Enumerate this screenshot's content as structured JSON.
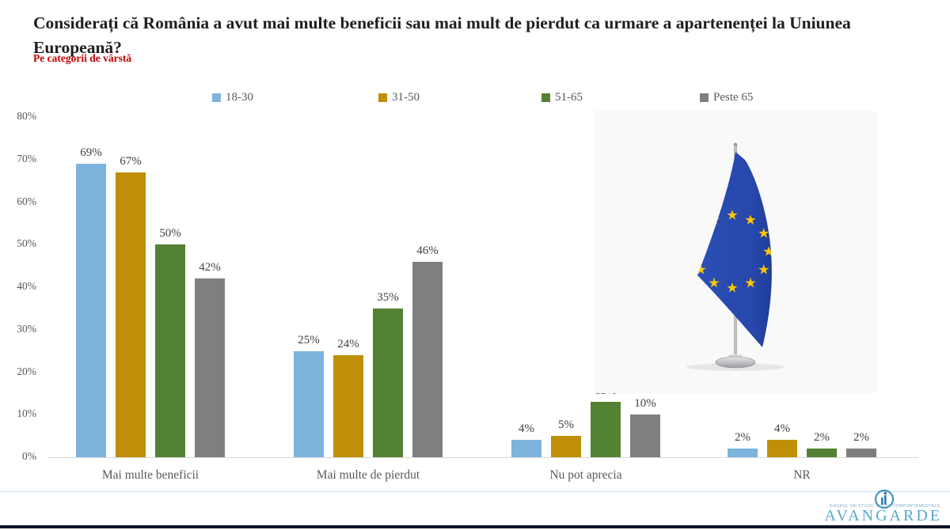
{
  "chart_data": {
    "type": "bar",
    "title": "Considerați că România a avut mai multe beneficii sau mai mult de pierdut ca urmare a apartenenței la Uniunea Europeană?",
    "subtitle": "Pe categorii de vârstă",
    "categories": [
      "Mai multe beneficii",
      "Mai multe de pierdut",
      "Nu pot aprecia",
      "NR"
    ],
    "series": [
      {
        "name": "18-30",
        "color": "#7cb4dd",
        "values": [
          69,
          25,
          4,
          2
        ]
      },
      {
        "name": "31-50",
        "color": "#bf9007",
        "values": [
          67,
          24,
          5,
          4
        ]
      },
      {
        "name": "51-65",
        "color": "#548235",
        "values": [
          50,
          35,
          13,
          2
        ]
      },
      {
        "name": "Peste 65",
        "color": "#7f7f7f",
        "values": [
          42,
          46,
          10,
          2
        ]
      }
    ],
    "value_suffix": "%",
    "ylim": [
      0,
      80
    ],
    "yticks": [
      "0%",
      "10%",
      "20%",
      "30%",
      "40%",
      "50%",
      "60%",
      "70%",
      "80%"
    ],
    "grid": false,
    "legend_position": "top",
    "xlabel": "",
    "ylabel": ""
  },
  "illustration": {
    "type": "eu-table-flag",
    "flag_blue": "#2a4fb5",
    "flag_blue_dark": "#1e3d9a",
    "star_gold": "#fdc703",
    "panel_bg": "#f9f9f9"
  },
  "footer": {
    "logo_text": "AVANGARDE",
    "logo_tagline": "GRUPUL DE STUDII SOCIO COMPORTAMENTALE"
  },
  "colors": {
    "title_text": "#1e1e1e",
    "subtitle_text": "#c00000",
    "axis_text": "#595959",
    "value_text": "#3f3f3f",
    "logo_blue": "#58a7ce",
    "footer_bar": "#0d1626"
  }
}
